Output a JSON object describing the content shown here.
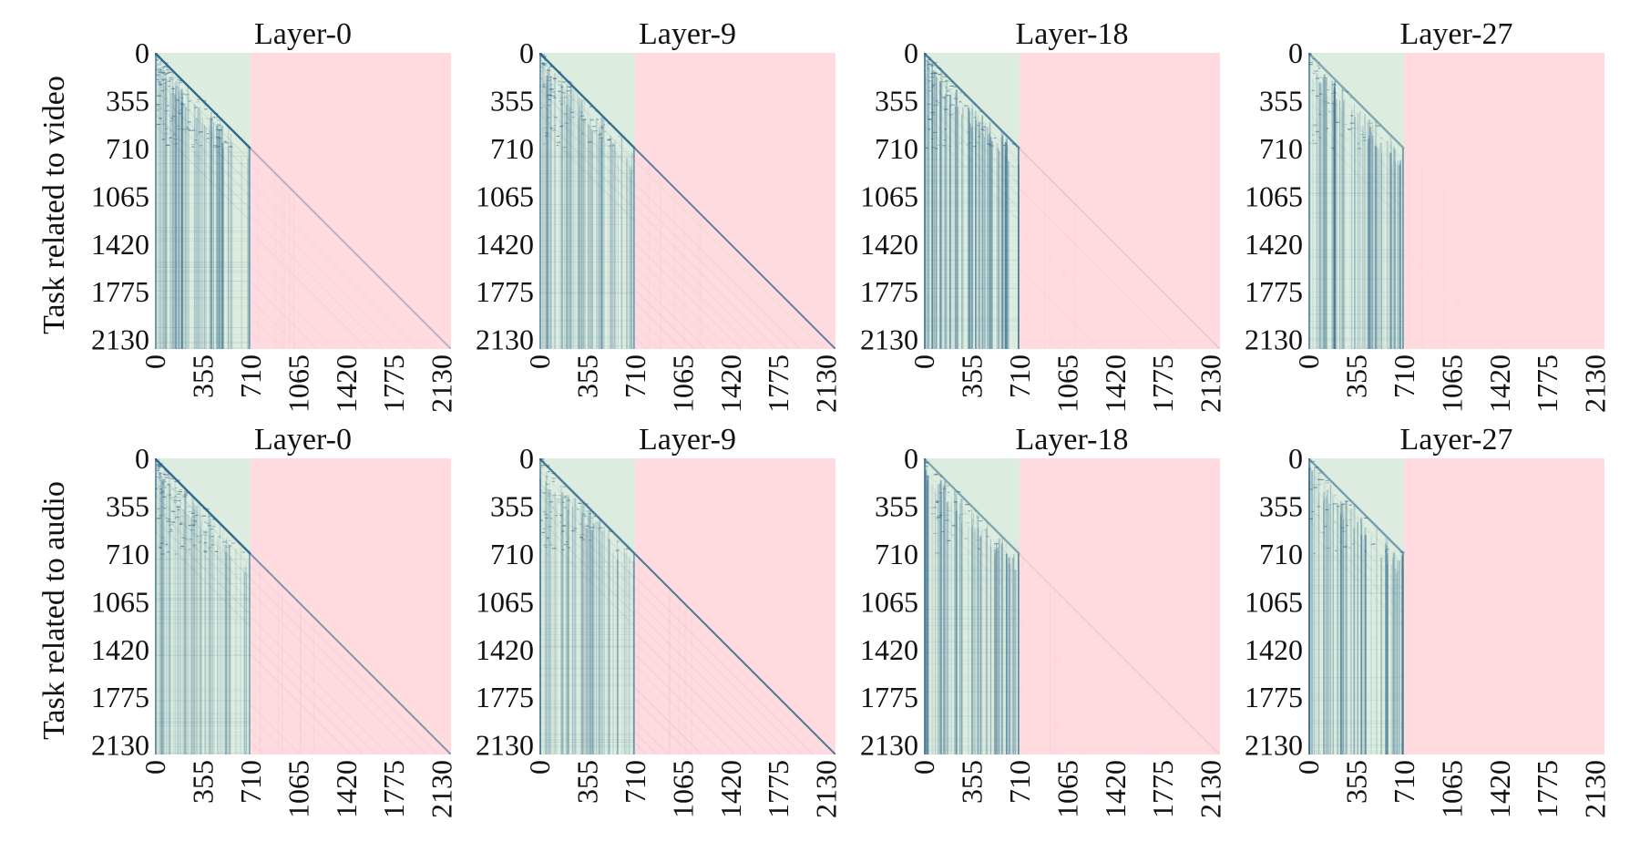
{
  "chart_data": {
    "type": "heatmap",
    "row_labels": [
      "Task related to video",
      "Task related to audio"
    ],
    "panel_titles": [
      "Layer-0",
      "Layer-9",
      "Layer-18",
      "Layer-27"
    ],
    "ticks": [
      0,
      355,
      710,
      1065,
      1420,
      1775,
      2130
    ],
    "tick_labels": [
      "0",
      "355",
      "710",
      "1065",
      "1420",
      "1775",
      "2130"
    ],
    "axis_range": [
      0,
      2200
    ],
    "boundary_token": 710,
    "region_colors": {
      "left": "#dcecdf",
      "right": "#ffdbe0"
    },
    "color_range": {
      "low": "#d7eadc",
      "high": "#2a6388"
    },
    "panels": [
      {
        "row": 0,
        "title": "Layer-0",
        "diag_strength": 0.95,
        "stripe_strength": 0.65,
        "left_density": 0.55,
        "right_intensity": 0.35,
        "right_diag": 0.4,
        "right_fade": 0.2
      },
      {
        "row": 0,
        "title": "Layer-9",
        "diag_strength": 0.9,
        "stripe_strength": 0.6,
        "left_density": 0.45,
        "right_intensity": 0.45,
        "right_diag": 0.9,
        "right_fade": 0.55
      },
      {
        "row": 0,
        "title": "Layer-18",
        "diag_strength": 0.75,
        "stripe_strength": 0.9,
        "left_density": 0.35,
        "right_intensity": 0.12,
        "right_diag": 0.15,
        "right_fade": 0.1
      },
      {
        "row": 0,
        "title": "Layer-27",
        "diag_strength": 0.5,
        "stripe_strength": 0.7,
        "left_density": 0.25,
        "right_intensity": 0.02,
        "right_diag": 0.0,
        "right_fade": 0.0
      },
      {
        "row": 1,
        "title": "Layer-0",
        "diag_strength": 0.95,
        "stripe_strength": 0.5,
        "left_density": 0.6,
        "right_intensity": 0.45,
        "right_diag": 0.7,
        "right_fade": 0.35
      },
      {
        "row": 1,
        "title": "Layer-9",
        "diag_strength": 0.8,
        "stripe_strength": 0.55,
        "left_density": 0.35,
        "right_intensity": 0.5,
        "right_diag": 1.0,
        "right_fade": 0.6
      },
      {
        "row": 1,
        "title": "Layer-18",
        "diag_strength": 0.5,
        "stripe_strength": 0.85,
        "left_density": 0.2,
        "right_intensity": 0.05,
        "right_diag": 0.1,
        "right_fade": 0.05
      },
      {
        "row": 1,
        "title": "Layer-27",
        "diag_strength": 0.55,
        "stripe_strength": 0.8,
        "left_density": 0.2,
        "right_intensity": 0.0,
        "right_diag": 0.0,
        "right_fade": 0.0
      }
    ]
  }
}
